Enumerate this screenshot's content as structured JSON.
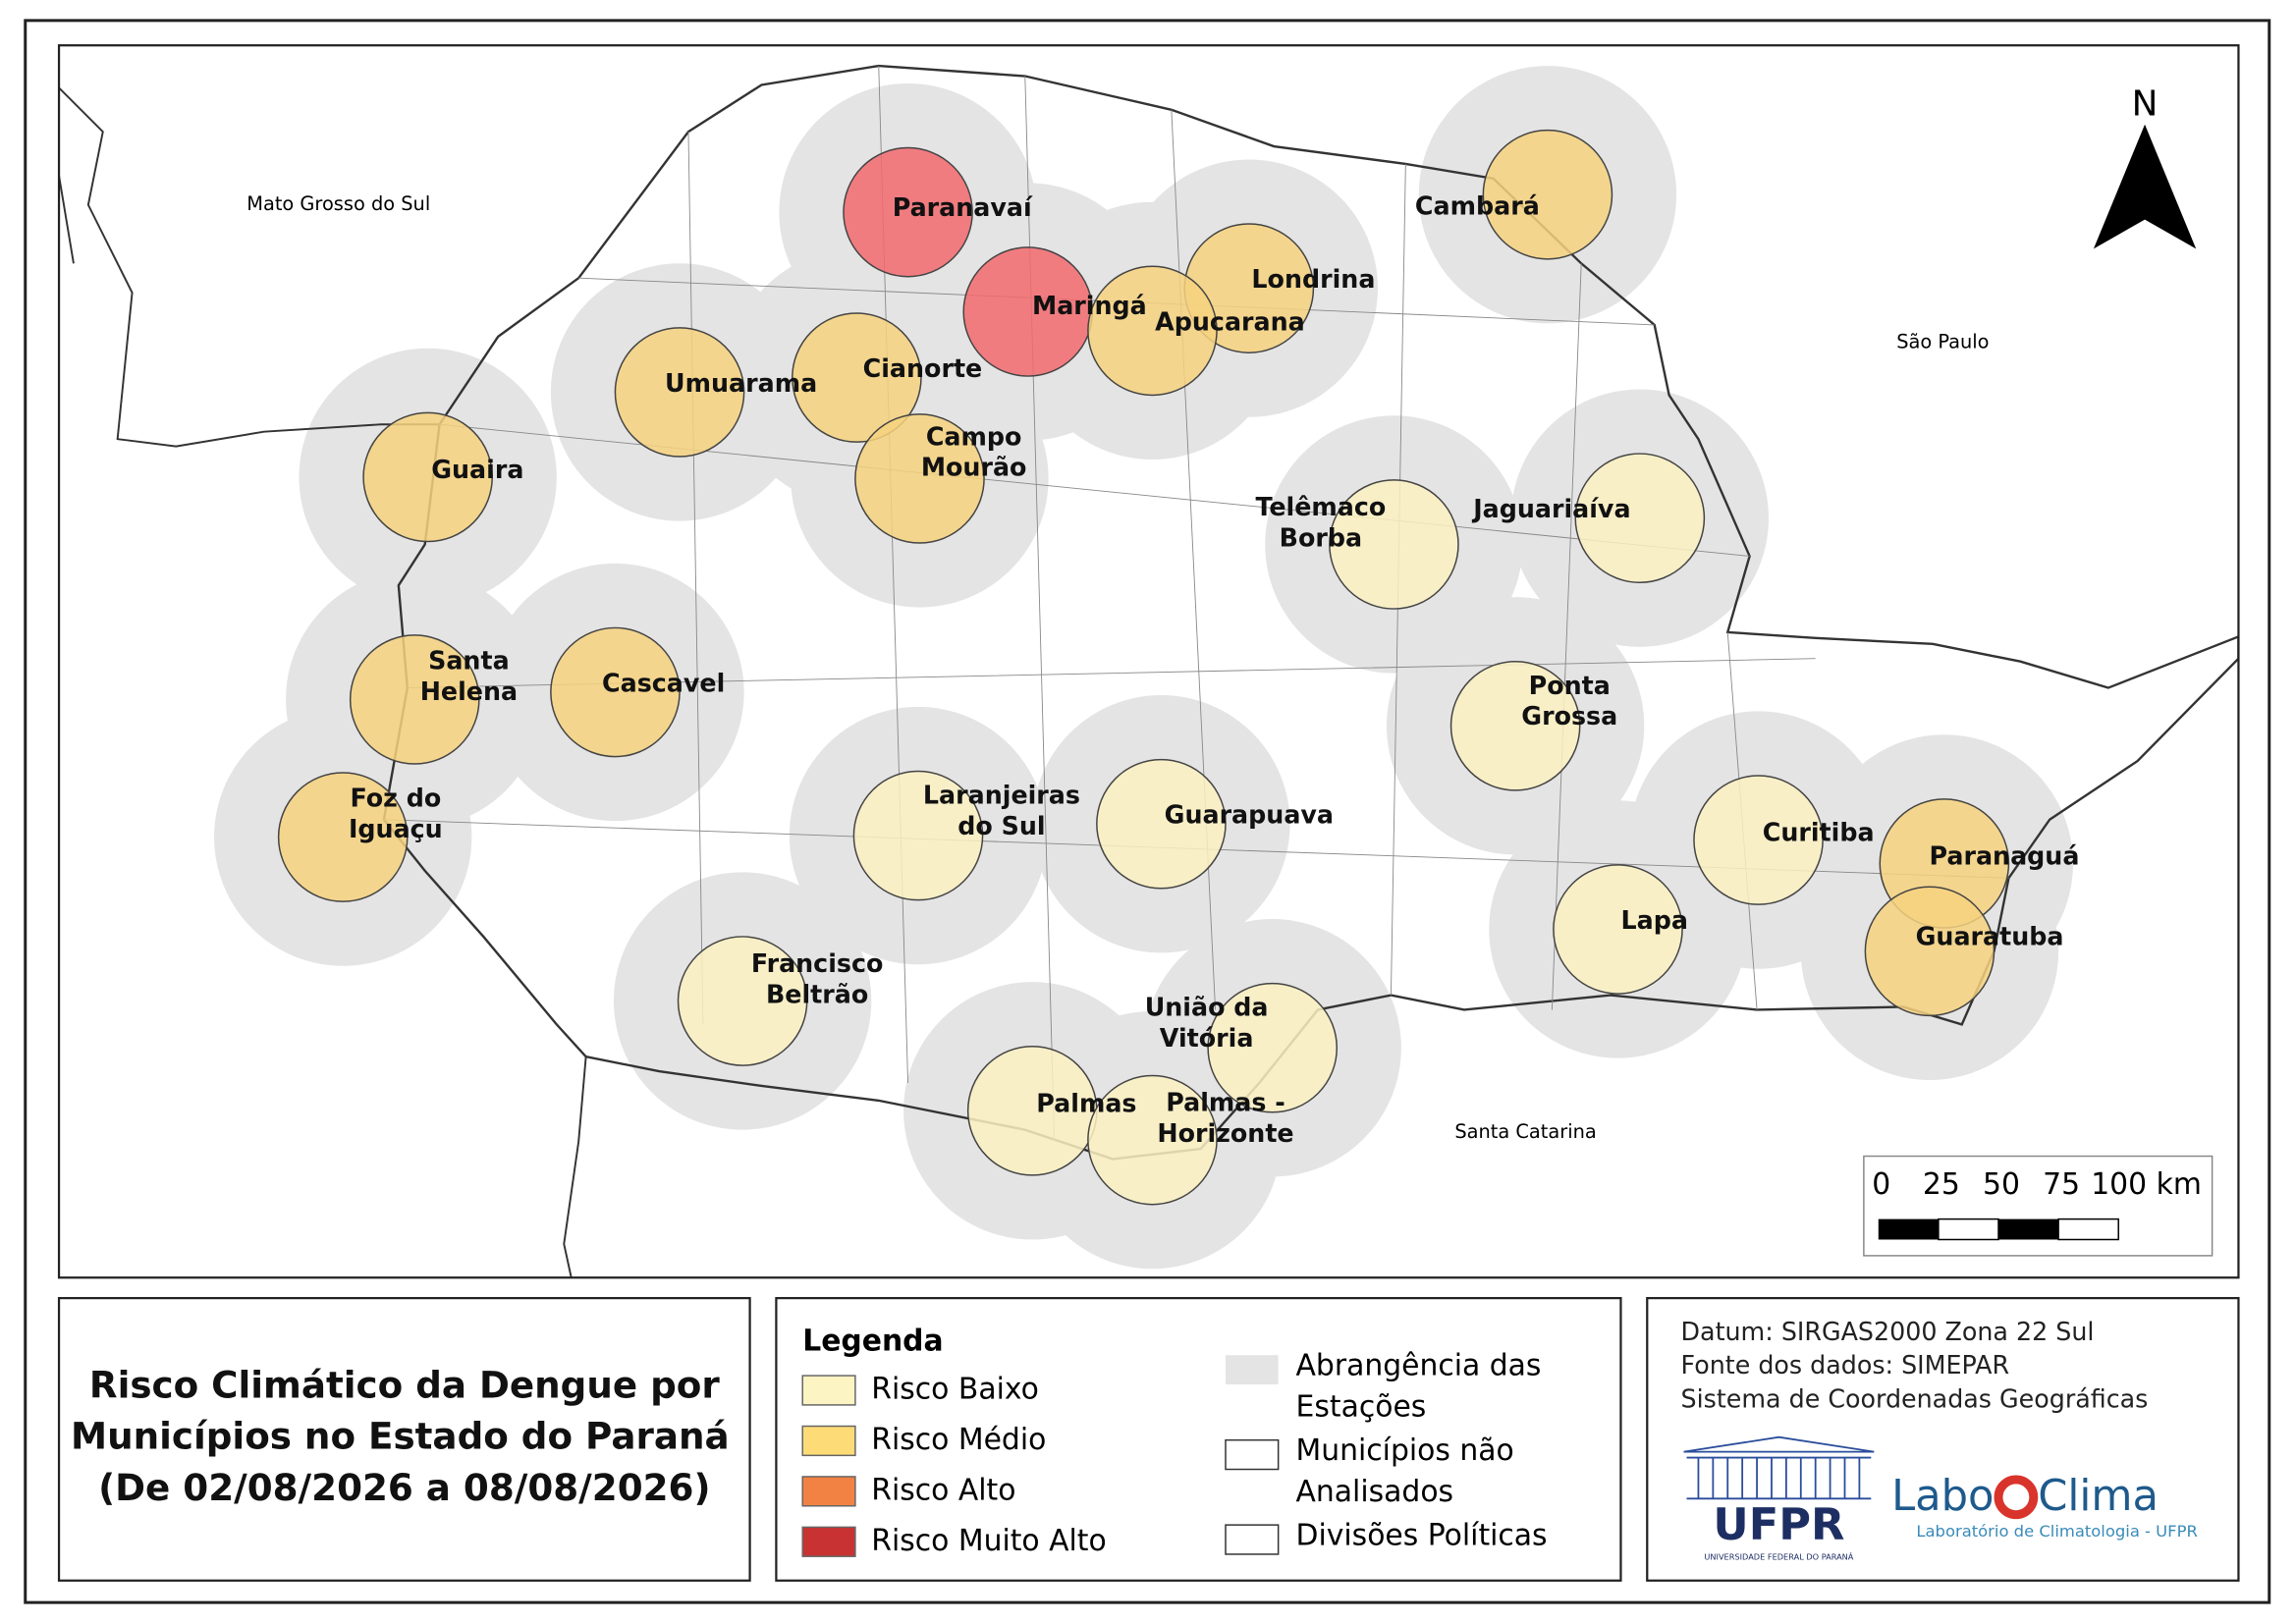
{
  "map": {
    "north": "N",
    "neighbors": [
      "Mato Grosso do Sul",
      "São Paulo",
      "Santa Catarina"
    ],
    "scale_labels": [
      "0",
      "25",
      "50",
      "75",
      "100 km"
    ],
    "stations": [
      {
        "name": [
          "Paranavaí"
        ],
        "color": "#f26a6e"
      },
      {
        "name": [
          "Maringá"
        ],
        "color": "#f26a6e"
      },
      {
        "name": [
          "Londrina"
        ],
        "color": "#f6d27f"
      },
      {
        "name": [
          "Apucarana"
        ],
        "color": "#f6d27f"
      },
      {
        "name": [
          "Cambará"
        ],
        "color": "#f6d27f"
      },
      {
        "name": [
          "Cianorte"
        ],
        "color": "#f6d27f"
      },
      {
        "name": [
          "Umuarama"
        ],
        "color": "#f6d27f"
      },
      {
        "name": [
          "Campo",
          "Mourão"
        ],
        "color": "#f6d27f"
      },
      {
        "name": [
          "Guaira"
        ],
        "color": "#f6d27f"
      },
      {
        "name": [
          "Santa",
          "Helena"
        ],
        "color": "#f6d27f"
      },
      {
        "name": [
          "Cascavel"
        ],
        "color": "#f6d27f"
      },
      {
        "name": [
          "Foz do",
          "Iguaçu"
        ],
        "color": "#f6d27f"
      },
      {
        "name": [
          "Telêmaco",
          "Borba"
        ],
        "color": "#fbf1c2"
      },
      {
        "name": [
          "Jaguariaíva"
        ],
        "color": "#fbf1c2"
      },
      {
        "name": [
          "Ponta",
          "Grossa"
        ],
        "color": "#fbf1c2"
      },
      {
        "name": [
          "Laranjeiras",
          "do Sul"
        ],
        "color": "#fbf1c2"
      },
      {
        "name": [
          "Guarapuava"
        ],
        "color": "#fbf1c2"
      },
      {
        "name": [
          "Curitiba"
        ],
        "color": "#fbf1c2"
      },
      {
        "name": [
          "Paranaguá"
        ],
        "color": "#f6d27f"
      },
      {
        "name": [
          "Guaratuba"
        ],
        "color": "#f6d27f"
      },
      {
        "name": [
          "Lapa"
        ],
        "color": "#fbf1c2"
      },
      {
        "name": [
          "Francisco",
          "Beltrão"
        ],
        "color": "#fbf1c2"
      },
      {
        "name": [
          "União da",
          "Vitória"
        ],
        "color": "#fbf1c2"
      },
      {
        "name": [
          "Palmas"
        ],
        "color": "#fbf1c2"
      },
      {
        "name": [
          "Palmas -",
          "Horizonte"
        ],
        "color": "#fbf1c2"
      }
    ]
  },
  "title": [
    "Risco Climático da Dengue por",
    "Municípios no Estado do Paraná",
    "(De 02/08/2026 a 08/08/2026)"
  ],
  "legend": {
    "title": "Legenda",
    "risk": [
      {
        "label": "Risco Baixo",
        "color": "#fdf4c4"
      },
      {
        "label": "Risco Médio",
        "color": "#fddc78"
      },
      {
        "label": "Risco Alto",
        "color": "#f28243"
      },
      {
        "label": "Risco Muito Alto",
        "color": "#c93232"
      }
    ],
    "layers": [
      [
        "Abrangência das",
        "Estações"
      ],
      [
        "Municípios não",
        "Analisados"
      ],
      [
        "Divisões Políticas"
      ]
    ]
  },
  "info": {
    "lines": [
      "Datum: SIRGAS2000 Zona 22 Sul",
      "Fonte dos dados: SIMEPAR",
      "Sistema de Coordenadas Geográficas"
    ],
    "ufpr": "UFPR",
    "ufpr_sub": "UNIVERSIDADE FEDERAL DO PARANÁ",
    "labo": [
      "Labo",
      "Clima"
    ],
    "labo_sub": "Laboratório de Climatologia - UFPR"
  }
}
